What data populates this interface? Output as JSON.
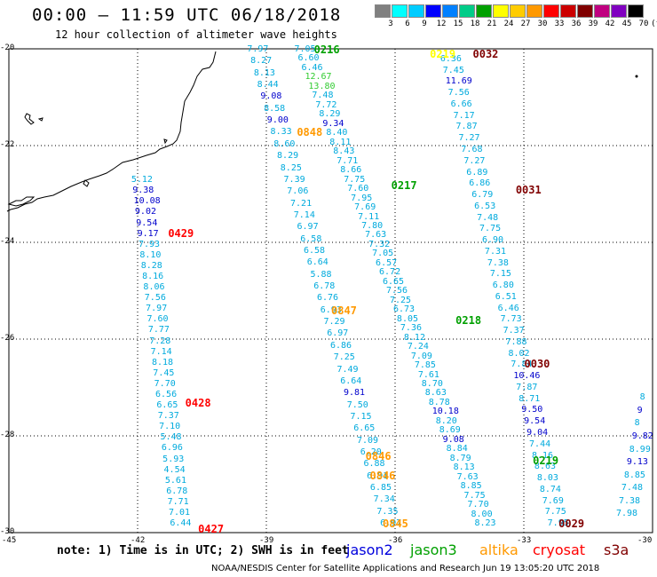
{
  "title": "00:00 – 11:59 UTC 06/18/2018",
  "subtitle": "12 hour collection of altimeter wave heights",
  "scale": {
    "colors": [
      "#808080",
      "#00ffff",
      "#00ccff",
      "#0000ff",
      "#0080ff",
      "#00cc88",
      "#00a000",
      "#ffff00",
      "#ffcc00",
      "#ff9900",
      "#ff0000",
      "#cc0000",
      "#800000",
      "#c00080",
      "#8000c0",
      "#000000"
    ],
    "labels": [
      "3",
      "6",
      "9",
      "12",
      "15",
      "18",
      "21",
      "24",
      "27",
      "30",
      "33",
      "36",
      "39",
      "42",
      "45",
      "70",
      "(ft)"
    ]
  },
  "lat_labels": [
    "-20",
    "-22",
    "-24",
    "-26",
    "-28",
    "-30"
  ],
  "lon_labels": [
    "-45",
    "-42",
    "-39",
    "-36",
    "-33",
    "-30"
  ],
  "note": "note: 1) Time is in UTC; 2) SWH is in feet",
  "legend": [
    {
      "name": "jason2",
      "color": "#0000dd"
    },
    {
      "name": "jason3",
      "color": "#00a000"
    },
    {
      "name": "altika",
      "color": "#ff9900"
    },
    {
      "name": "cryosat",
      "color": "#ff0000"
    },
    {
      "name": "s3a",
      "color": "#800000"
    }
  ],
  "credit": "NOAA/NESDIS Center for Satellite Applications and Research   Jun 19 13:05:20 UTC 2018",
  "passes": [
    {
      "label": "0216",
      "color": "#00a000",
      "lat": -20.0,
      "lon": -37.6
    },
    {
      "label": "0217",
      "color": "#00a000",
      "lat": -22.8,
      "lon": -35.8
    },
    {
      "label": "0218",
      "color": "#00a000",
      "lat": -25.6,
      "lon": -34.3
    },
    {
      "label": "0219",
      "color": "#00a000",
      "lat": -28.5,
      "lon": -32.5
    },
    {
      "label": "0032",
      "color": "#800000",
      "lat": -20.1,
      "lon": -33.9
    },
    {
      "label": "0031",
      "color": "#800000",
      "lat": -22.9,
      "lon": -32.9
    },
    {
      "label": "0030",
      "color": "#800000",
      "lat": -26.5,
      "lon": -32.7
    },
    {
      "label": "0029",
      "color": "#800000",
      "lat": -29.8,
      "lon": -31.9
    },
    {
      "label": "0429",
      "color": "#ff0000",
      "lat": -23.8,
      "lon": -41.0
    },
    {
      "label": "0428",
      "color": "#ff0000",
      "lat": -27.3,
      "lon": -40.6
    },
    {
      "label": "0427",
      "color": "#ff0000",
      "lat": -29.9,
      "lon": -40.3
    },
    {
      "label": "0848",
      "color": "#ff9900",
      "lat": -21.7,
      "lon": -38.0
    },
    {
      "label": "0847",
      "color": "#ff9900",
      "lat": -25.4,
      "lon": -37.2
    },
    {
      "label": "0846",
      "color": "#ff9900",
      "lat": -28.4,
      "lon": -36.4
    },
    {
      "label": "0846",
      "color": "#ff9900",
      "lat": -28.8,
      "lon": -36.3
    },
    {
      "label": "0845",
      "color": "#ff9900",
      "lat": -29.8,
      "lon": -36.0
    },
    {
      "label": "0219",
      "color": "#ffff00",
      "lat": -20.1,
      "lon": -34.9
    }
  ],
  "tracks": [
    {
      "name": "track-a",
      "lon_top": -39.2,
      "lon_bottom": -36.1,
      "lat_top": -20.0,
      "lat_bottom": -29.8,
      "values": [
        "7.97",
        "8.27",
        "8.13",
        "8.44",
        "9.08",
        "8.58",
        "9.00",
        "8.33",
        "8.60",
        "8.29",
        "8.25",
        "7.39",
        "7.06",
        "7.21",
        "7.14",
        "6.97",
        "6.58",
        "6.58",
        "6.64",
        "5.88",
        "6.78",
        "6.76",
        "6.93",
        "7.29",
        "6.97",
        "6.86",
        "7.25",
        "7.49",
        "6.64",
        "9.81",
        "7.50",
        "7.15",
        "6.65",
        "7.09",
        "6.20",
        "6.88",
        "6.91",
        "6.85",
        "7.34",
        "7.35",
        "6.97"
      ]
    },
    {
      "name": "track-b",
      "lon_top": -38.1,
      "lon_bottom": -33.9,
      "lat_top": -20.0,
      "lat_bottom": -29.8,
      "values": [
        "7.05",
        "6.60",
        "6.46",
        "12.67",
        "13.80",
        "7.48",
        "7.72",
        "8.29",
        "9.34",
        "8.40",
        "8.11",
        "8.43",
        "7.71",
        "8.66",
        "7.75",
        "7.60",
        "7.95",
        "7.69",
        "7.11",
        "7.80",
        "7.63",
        "7.32",
        "7.05",
        "6.57",
        "6.72",
        "6.65",
        "7.56",
        "7.25",
        "6.73",
        "8.05",
        "7.36",
        "8.12",
        "7.24",
        "7.09",
        "7.85",
        "7.61",
        "8.70",
        "8.63",
        "8.78",
        "10.18",
        "8.20",
        "8.69",
        "9.08",
        "8.84",
        "8.79",
        "8.13",
        "7.63",
        "8.85",
        "7.75",
        "7.70",
        "8.00",
        "8.23"
      ]
    },
    {
      "name": "track-c",
      "lon_top": -34.7,
      "lon_bottom": -32.2,
      "lat_top": -20.2,
      "lat_bottom": -29.8,
      "values": [
        "6.36",
        "7.45",
        "11.69",
        "7.56",
        "6.66",
        "7.17",
        "7.87",
        "7.27",
        "7.68",
        "7.27",
        "6.89",
        "6.86",
        "6.79",
        "6.53",
        "7.48",
        "7.75",
        "6.90",
        "7.31",
        "7.38",
        "7.15",
        "6.80",
        "6.51",
        "6.46",
        "7.73",
        "7.37",
        "7.88",
        "8.02",
        "7.84",
        "10.46",
        "7.87",
        "8.71",
        "9.50",
        "9.54",
        "9.04",
        "7.44",
        "8.16",
        "8.63",
        "8.03",
        "8.74",
        "7.69",
        "7.75",
        "7.95"
      ]
    },
    {
      "name": "track-d",
      "lon_top": -41.9,
      "lon_bottom": -41.0,
      "lat_top": -22.7,
      "lat_bottom": -29.8,
      "values": [
        "5.12",
        "9.38",
        "10.08",
        "9.02",
        "9.54",
        "9.17",
        "7.93",
        "8.10",
        "8.28",
        "8.16",
        "8.06",
        "7.56",
        "7.97",
        "7.60",
        "7.77",
        "7.28",
        "7.14",
        "8.18",
        "7.45",
        "7.70",
        "6.56",
        "6.65",
        "7.37",
        "7.10",
        "5.48",
        "6.96",
        "5.93",
        "4.54",
        "5.61",
        "6.78",
        "7.71",
        "7.01",
        "6.44"
      ]
    },
    {
      "name": "track-e",
      "lon_top": -30.05,
      "lon_bottom": -30.6,
      "lat_top": -27.2,
      "lat_bottom": -29.6,
      "values": [
        "8",
        "9",
        "8",
        "9.82",
        "8.99",
        "9.13",
        "8.85",
        "7.48",
        "7.38",
        "7.98"
      ]
    }
  ]
}
